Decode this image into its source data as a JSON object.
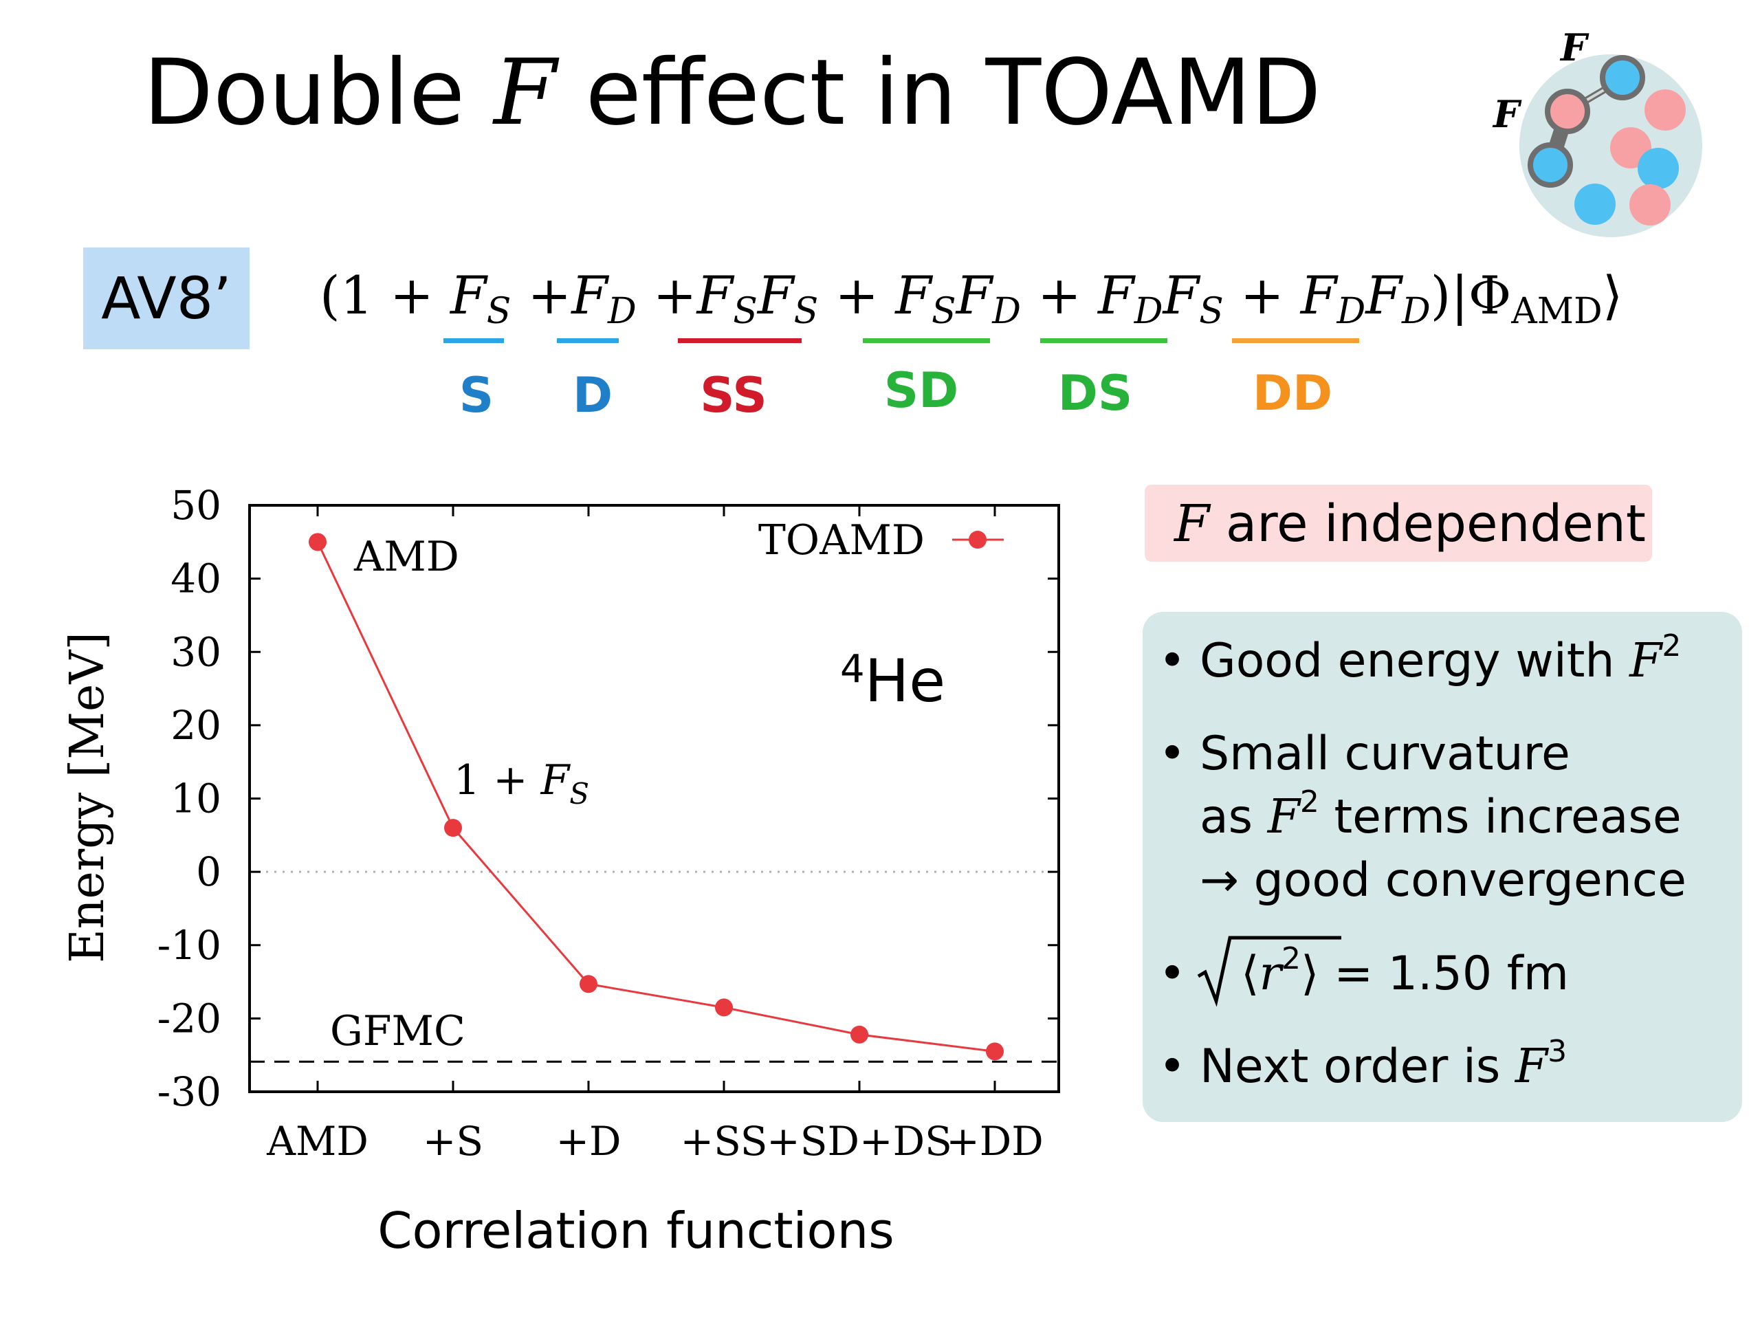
{
  "slide": {
    "title_pre": "Double ",
    "title_f": "F",
    "title_post": " effect in TOAMD",
    "logo_f1": "F",
    "logo_f2": "F",
    "av_tag": "AV8’",
    "formula": {
      "open": "(1 + ",
      "t1": "F",
      "t1s": "S",
      "p2": " +",
      "t2": "F",
      "t2s": "D",
      "p3": " +",
      "t3a": "F",
      "t3as": "S",
      "t3b": "F",
      "t3bs": "S",
      "p4": " + ",
      "t4a": "F",
      "t4as": "S",
      "t4b": "F",
      "t4bs": "D",
      "p5": " + ",
      "t5a": "F",
      "t5as": "D",
      "t5b": "F",
      "t5bs": "S",
      "p6": " + ",
      "t6a": "F",
      "t6as": "D",
      "t6b": "F",
      "t6bs": "D",
      "close": ")|Φ",
      "amd": "AMD",
      "ket": "⟩"
    },
    "term_labels": [
      {
        "text": "S",
        "color": "#1f7fc9"
      },
      {
        "text": "D",
        "color": "#1f7fc9"
      },
      {
        "text": "SS",
        "color": "#d11a2a"
      },
      {
        "text": "SD",
        "color": "#27b23a"
      },
      {
        "text": "DS",
        "color": "#27b23a"
      },
      {
        "text": "DD",
        "color": "#f5921e"
      }
    ],
    "underline_colors": [
      "#2aa6e6",
      "#2aa6e6",
      "#d11a2a",
      "#3cc23c",
      "#3cc23c",
      "#f5a034"
    ],
    "independent_f": "F",
    "independent_text": " are independent",
    "bullets": {
      "b1_pre": "Good energy with ",
      "b1_f": "F",
      "b1_sup": "2",
      "b2_l1": "Small curvature",
      "b2_l2_pre": "as ",
      "b2_l2_f": "F",
      "b2_l2_sup": "2",
      "b2_l2_post": " terms increase",
      "b2_l3": "→ good convergence",
      "b3_r": "r",
      "b3_sup": "2",
      "b3_val": " = 1.50 fm",
      "b4_pre": "Next order is ",
      "b4_f": "F",
      "b4_sup": "3"
    },
    "bullet_symbol": "•"
  },
  "chart_data": {
    "type": "line",
    "categories": [
      "AMD",
      "+S",
      "+D",
      "+SS",
      "+SD+DS",
      "+DD"
    ],
    "series": [
      {
        "name": "TOAMD",
        "color": "#e8393e",
        "values": [
          45.0,
          6.0,
          -15.3,
          -18.5,
          -22.2,
          -24.5
        ]
      }
    ],
    "reference_lines": [
      {
        "label": "GFMC",
        "y": -25.9,
        "style": "dashed"
      },
      {
        "y": 0,
        "style": "dotted"
      }
    ],
    "annotations": {
      "amd": "AMD",
      "fs_pre": "1 + ",
      "fs_f": "F",
      "fs_sub": "S",
      "nucleus_sup": "4",
      "nucleus": "He"
    },
    "ylabel": "Energy [MeV]",
    "xlabel": "Correlation functions",
    "ylim": [
      -30,
      50
    ],
    "yticks": [
      50,
      40,
      30,
      20,
      10,
      0,
      -10,
      -20,
      -30
    ],
    "legend_position": "top-right"
  }
}
